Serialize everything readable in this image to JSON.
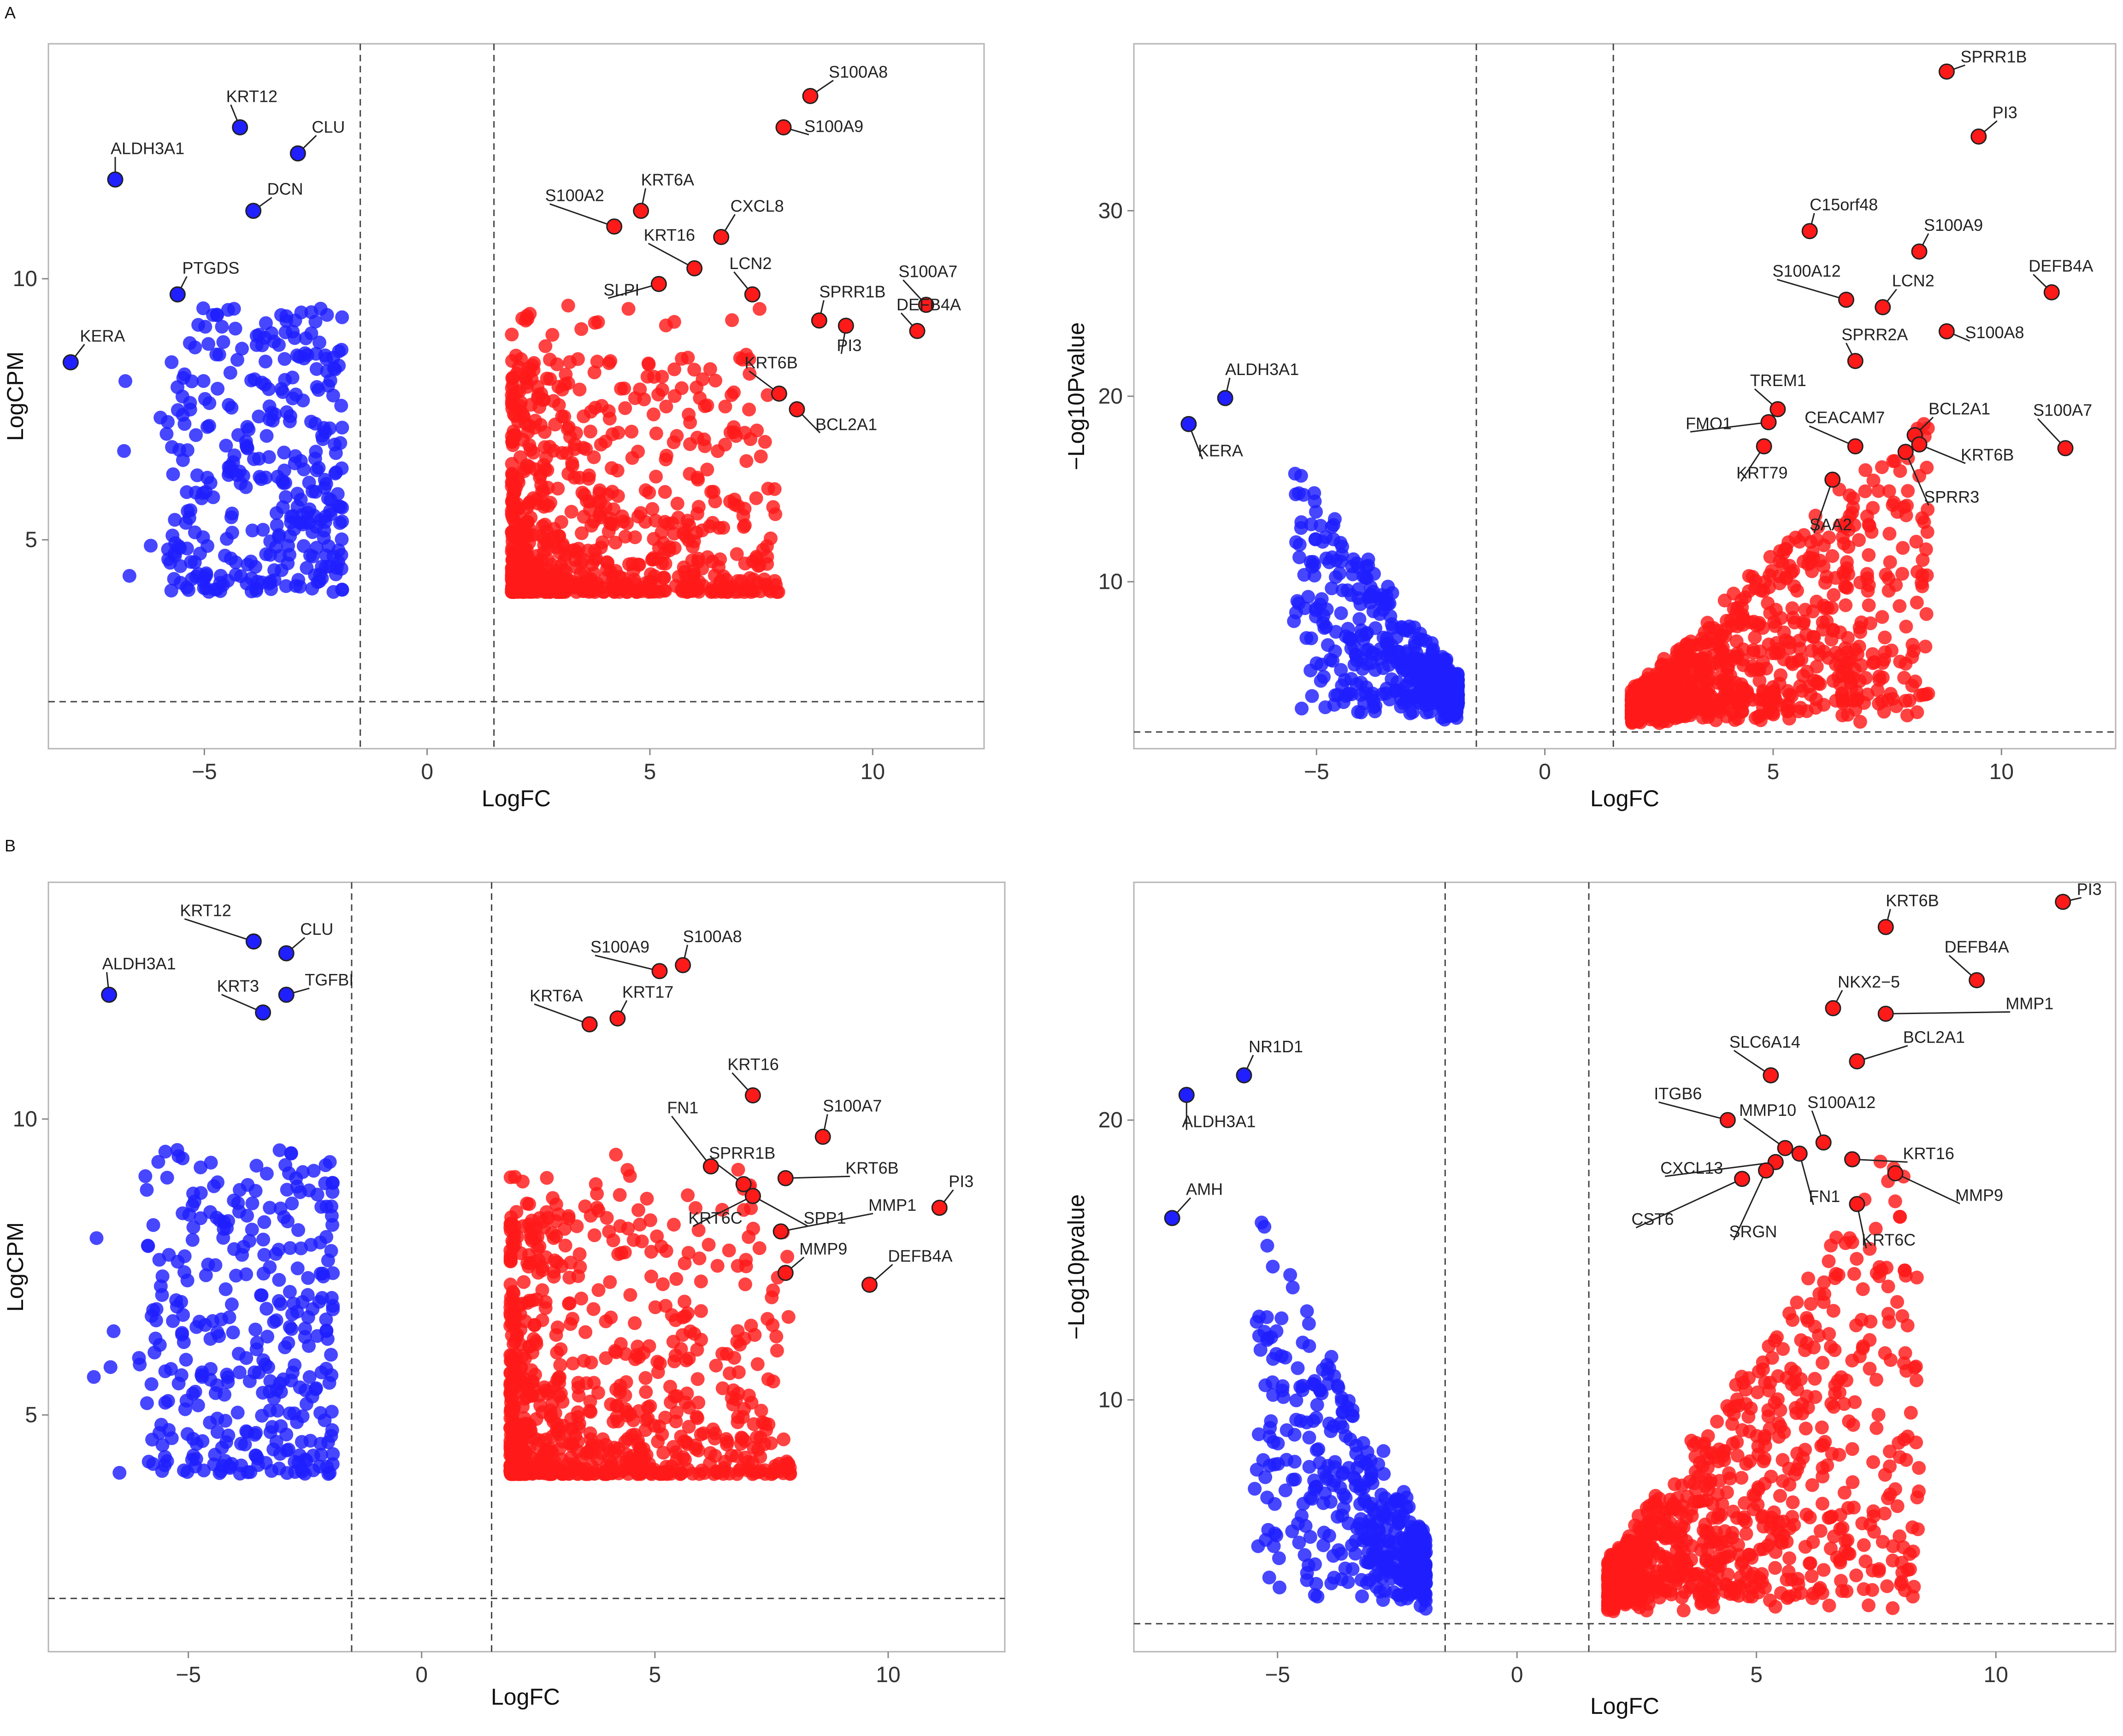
{
  "figure": {
    "panel_letters": [
      "A",
      "B"
    ],
    "colors": {
      "down": "#1f1fff",
      "up": "#ff1a1a",
      "label_outline": "#202020",
      "frame": "#b5b5b5"
    }
  },
  "chart_data": [
    {
      "id": "A-left",
      "type": "scatter",
      "title": "",
      "xlabel": "LogFC",
      "ylabel": "LogCPM",
      "xlim": [
        -8.5,
        12.5
      ],
      "ylim": [
        1.0,
        14.5
      ],
      "xticks": [
        -5,
        0,
        5,
        10
      ],
      "yticks": [
        5,
        10
      ],
      "thresholds": {
        "x": [
          -1.5,
          1.5
        ],
        "y": [
          1.9
        ]
      },
      "labeled_points": [
        {
          "gene": "S100A8",
          "x": 8.6,
          "y": 13.5,
          "color": "up"
        },
        {
          "gene": "S100A9",
          "x": 8.0,
          "y": 12.9,
          "color": "up"
        },
        {
          "gene": "KRT12",
          "x": -4.2,
          "y": 12.9,
          "color": "down"
        },
        {
          "gene": "CLU",
          "x": -2.9,
          "y": 12.4,
          "color": "down"
        },
        {
          "gene": "ALDH3A1",
          "x": -7.0,
          "y": 11.9,
          "color": "down"
        },
        {
          "gene": "DCN",
          "x": -3.9,
          "y": 11.3,
          "color": "down"
        },
        {
          "gene": "S100A2",
          "x": 4.2,
          "y": 11.0,
          "color": "up"
        },
        {
          "gene": "KRT6A",
          "x": 4.8,
          "y": 11.3,
          "color": "up"
        },
        {
          "gene": "CXCL8",
          "x": 6.6,
          "y": 10.8,
          "color": "up"
        },
        {
          "gene": "KRT16",
          "x": 6.0,
          "y": 10.2,
          "color": "up"
        },
        {
          "gene": "SLPI",
          "x": 5.2,
          "y": 9.9,
          "color": "up"
        },
        {
          "gene": "LCN2",
          "x": 7.3,
          "y": 9.7,
          "color": "up"
        },
        {
          "gene": "S100A7",
          "x": 11.2,
          "y": 9.5,
          "color": "up"
        },
        {
          "gene": "PTGDS",
          "x": -5.6,
          "y": 9.7,
          "color": "down"
        },
        {
          "gene": "SPRR1B",
          "x": 8.8,
          "y": 9.2,
          "color": "up"
        },
        {
          "gene": "PI3",
          "x": 9.4,
          "y": 9.1,
          "color": "up"
        },
        {
          "gene": "DEFB4A",
          "x": 11.0,
          "y": 9.0,
          "color": "up"
        },
        {
          "gene": "KERA",
          "x": -8.0,
          "y": 8.4,
          "color": "down"
        },
        {
          "gene": "KRT6B",
          "x": 7.9,
          "y": 7.8,
          "color": "up"
        },
        {
          "gene": "BCL2A1",
          "x": 8.3,
          "y": 7.5,
          "color": "up"
        }
      ]
    },
    {
      "id": "A-right",
      "type": "scatter",
      "title": "",
      "xlabel": "LogFC",
      "ylabel": "−Log10Pvalue",
      "xlim": [
        -9.0,
        12.5
      ],
      "ylim": [
        1.0,
        39.0
      ],
      "xticks": [
        -5,
        0,
        5,
        10
      ],
      "yticks": [
        10,
        20,
        30
      ],
      "thresholds": {
        "x": [
          -1.5,
          1.5
        ],
        "y": [
          1.9
        ]
      },
      "labeled_points": [
        {
          "gene": "SPRR1B",
          "x": 8.8,
          "y": 37.5,
          "color": "up"
        },
        {
          "gene": "PI3",
          "x": 9.5,
          "y": 34.0,
          "color": "up"
        },
        {
          "gene": "C15orf48",
          "x": 5.8,
          "y": 28.9,
          "color": "up"
        },
        {
          "gene": "S100A9",
          "x": 8.2,
          "y": 27.8,
          "color": "up"
        },
        {
          "gene": "DEFB4A",
          "x": 11.1,
          "y": 25.6,
          "color": "up"
        },
        {
          "gene": "S100A12",
          "x": 6.6,
          "y": 25.2,
          "color": "up"
        },
        {
          "gene": "LCN2",
          "x": 7.4,
          "y": 24.8,
          "color": "up"
        },
        {
          "gene": "S100A8",
          "x": 8.8,
          "y": 23.5,
          "color": "up"
        },
        {
          "gene": "SPRR2A",
          "x": 6.8,
          "y": 21.9,
          "color": "up"
        },
        {
          "gene": "ALDH3A1",
          "x": -7.0,
          "y": 19.9,
          "color": "down"
        },
        {
          "gene": "TREM1",
          "x": 5.1,
          "y": 19.3,
          "color": "up"
        },
        {
          "gene": "KERA",
          "x": -7.8,
          "y": 18.5,
          "color": "down"
        },
        {
          "gene": "FMO1",
          "x": 4.9,
          "y": 18.6,
          "color": "up"
        },
        {
          "gene": "BCL2A1",
          "x": 8.1,
          "y": 17.9,
          "color": "up"
        },
        {
          "gene": "CEACAM7",
          "x": 6.8,
          "y": 17.3,
          "color": "up"
        },
        {
          "gene": "KRT6B",
          "x": 8.2,
          "y": 17.4,
          "color": "up"
        },
        {
          "gene": "SPRR3",
          "x": 7.9,
          "y": 17.0,
          "color": "up"
        },
        {
          "gene": "S100A7",
          "x": 11.4,
          "y": 17.2,
          "color": "up"
        },
        {
          "gene": "KRT79",
          "x": 4.8,
          "y": 17.3,
          "color": "up"
        },
        {
          "gene": "SAA2",
          "x": 6.3,
          "y": 15.5,
          "color": "up"
        }
      ]
    },
    {
      "id": "B-left",
      "type": "scatter",
      "title": "",
      "xlabel": "LogFC",
      "ylabel": "LogCPM",
      "xlim": [
        -8.0,
        12.5
      ],
      "ylim": [
        1.0,
        14.0
      ],
      "xticks": [
        -5,
        0,
        5,
        10
      ],
      "yticks": [
        5,
        10
      ],
      "thresholds": {
        "x": [
          -1.5,
          1.5
        ],
        "y": [
          1.9
        ]
      },
      "labeled_points": [
        {
          "gene": "KRT12",
          "x": -3.6,
          "y": 13.0,
          "color": "down"
        },
        {
          "gene": "CLU",
          "x": -2.9,
          "y": 12.8,
          "color": "down"
        },
        {
          "gene": "ALDH3A1",
          "x": -6.7,
          "y": 12.1,
          "color": "down"
        },
        {
          "gene": "TGFBI",
          "x": -2.9,
          "y": 12.1,
          "color": "down"
        },
        {
          "gene": "KRT3",
          "x": -3.4,
          "y": 11.8,
          "color": "down"
        },
        {
          "gene": "S100A9",
          "x": 5.1,
          "y": 12.5,
          "color": "up"
        },
        {
          "gene": "S100A8",
          "x": 5.6,
          "y": 12.6,
          "color": "up"
        },
        {
          "gene": "KRT6A",
          "x": 3.6,
          "y": 11.6,
          "color": "up"
        },
        {
          "gene": "KRT17",
          "x": 4.2,
          "y": 11.7,
          "color": "up"
        },
        {
          "gene": "KRT16",
          "x": 7.1,
          "y": 10.4,
          "color": "up"
        },
        {
          "gene": "S100A7",
          "x": 8.6,
          "y": 9.7,
          "color": "up"
        },
        {
          "gene": "FN1",
          "x": 6.2,
          "y": 9.2,
          "color": "up"
        },
        {
          "gene": "SPRR1B",
          "x": 6.9,
          "y": 8.9,
          "color": "up"
        },
        {
          "gene": "KRT6B",
          "x": 7.8,
          "y": 9.0,
          "color": "up"
        },
        {
          "gene": "KRT6C",
          "x": 7.1,
          "y": 8.7,
          "color": "up"
        },
        {
          "gene": "SPP1",
          "x": 7.1,
          "y": 8.7,
          "color": "up"
        },
        {
          "gene": "PI3",
          "x": 11.1,
          "y": 8.5,
          "color": "up"
        },
        {
          "gene": "MMP1",
          "x": 7.7,
          "y": 8.1,
          "color": "up"
        },
        {
          "gene": "MMP9",
          "x": 7.8,
          "y": 7.4,
          "color": "up"
        },
        {
          "gene": "DEFB4A",
          "x": 9.6,
          "y": 7.2,
          "color": "up"
        }
      ]
    },
    {
      "id": "B-right",
      "type": "scatter",
      "title": "",
      "xlabel": "LogFC",
      "ylabel": "−Log10pvalue",
      "xlim": [
        -8.0,
        12.5
      ],
      "ylim": [
        1.0,
        28.5
      ],
      "xticks": [
        -5,
        0,
        5,
        10
      ],
      "yticks": [
        10,
        20
      ],
      "thresholds": {
        "x": [
          -1.5,
          1.5
        ],
        "y": [
          2.0
        ]
      },
      "labeled_points": [
        {
          "gene": "PI3",
          "x": 11.4,
          "y": 27.8,
          "color": "up"
        },
        {
          "gene": "KRT6B",
          "x": 7.7,
          "y": 26.9,
          "color": "up"
        },
        {
          "gene": "DEFB4A",
          "x": 9.6,
          "y": 25.0,
          "color": "up"
        },
        {
          "gene": "NKX2−5",
          "x": 6.6,
          "y": 24.0,
          "color": "up"
        },
        {
          "gene": "MMP1",
          "x": 7.7,
          "y": 23.8,
          "color": "up"
        },
        {
          "gene": "BCL2A1",
          "x": 7.1,
          "y": 22.1,
          "color": "up"
        },
        {
          "gene": "NR1D1",
          "x": -5.7,
          "y": 21.6,
          "color": "down"
        },
        {
          "gene": "SLC6A14",
          "x": 5.3,
          "y": 21.6,
          "color": "up"
        },
        {
          "gene": "ALDH3A1",
          "x": -6.9,
          "y": 20.9,
          "color": "down"
        },
        {
          "gene": "ITGB6",
          "x": 4.4,
          "y": 20.0,
          "color": "up"
        },
        {
          "gene": "S100A12",
          "x": 6.4,
          "y": 19.2,
          "color": "up"
        },
        {
          "gene": "MMP10",
          "x": 5.6,
          "y": 19.0,
          "color": "up"
        },
        {
          "gene": "KRT16",
          "x": 7.0,
          "y": 18.6,
          "color": "up"
        },
        {
          "gene": "CXCL13",
          "x": 5.4,
          "y": 18.5,
          "color": "up"
        },
        {
          "gene": "FN1",
          "x": 5.9,
          "y": 18.8,
          "color": "up"
        },
        {
          "gene": "CST6",
          "x": 4.7,
          "y": 17.9,
          "color": "up"
        },
        {
          "gene": "SRGN",
          "x": 5.2,
          "y": 18.2,
          "color": "up"
        },
        {
          "gene": "MMP9",
          "x": 7.9,
          "y": 18.1,
          "color": "up"
        },
        {
          "gene": "KRT6C",
          "x": 7.1,
          "y": 17.0,
          "color": "up"
        },
        {
          "gene": "AMH",
          "x": -7.2,
          "y": 16.5,
          "color": "down"
        }
      ]
    }
  ]
}
